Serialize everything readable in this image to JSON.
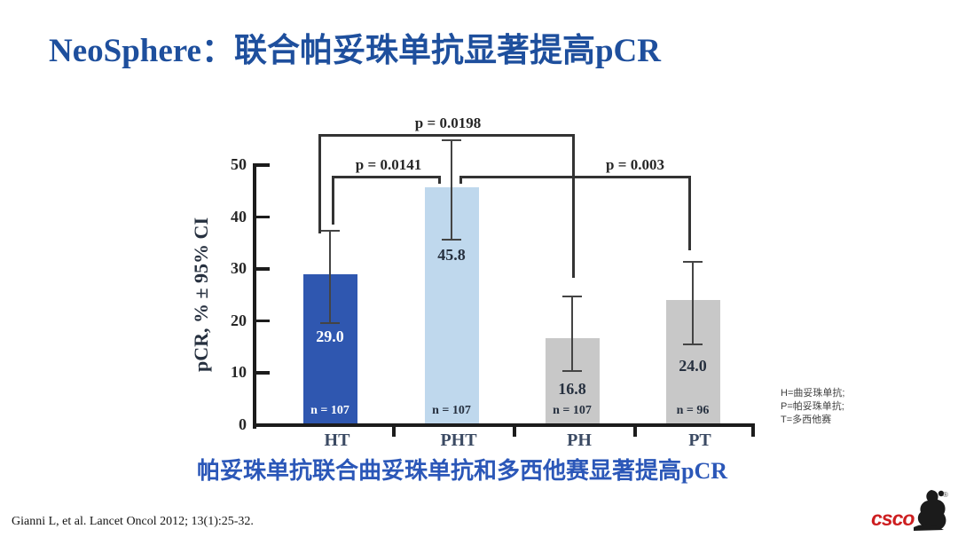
{
  "title": {
    "en": "NeoSphere",
    "zh": "：联合帕妥珠单抗显著提高pCR"
  },
  "caption": "帕妥珠单抗联合曲妥珠单抗和多西他赛显著提高pCR",
  "citation": "Gianni L, et al. Lancet Oncol 2012; 13(1):25-32.",
  "legend": {
    "lines": [
      "H=曲妥珠单抗;",
      "P=帕妥珠单抗;",
      "T=多西他赛"
    ]
  },
  "logo": {
    "text": "csco",
    "registered": "®"
  },
  "colors": {
    "title_blue": "#1e4f9d",
    "caption_blue": "#2b57b8",
    "axis": "#1c1c1c",
    "error_bar": "#444444",
    "bracket": "#333333",
    "category_label": "#3b4a63",
    "tick_label": "#262626",
    "logo_red": "#cd1e20"
  },
  "chart_data": {
    "type": "bar",
    "title": "",
    "xlabel": "",
    "ylabel": "pCR, % ± 95% CI",
    "ylim": [
      0,
      50
    ],
    "yticks": [
      0,
      10,
      20,
      30,
      40,
      50
    ],
    "grid": false,
    "categories": [
      "HT",
      "PHT",
      "PH",
      "PT"
    ],
    "values": [
      29.0,
      45.8,
      16.8,
      24.0
    ],
    "value_labels": [
      "29.0",
      "45.8",
      "16.8",
      "24.0"
    ],
    "ci_low": [
      19.5,
      35.5,
      10.3,
      15.4
    ],
    "ci_high": [
      37.5,
      54.9,
      24.9,
      31.6
    ],
    "n_labels": [
      "n = 107",
      "n = 107",
      "n = 107",
      "n = 96"
    ],
    "bar_colors": [
      "#2f57b0",
      "#bfd8ed",
      "#c8c8c8",
      "#c8c8c8"
    ],
    "value_label_colors": [
      "#ffffff",
      "#26303f",
      "#26303f",
      "#26303f"
    ],
    "n_label_colors": [
      "#ffffff",
      "#26303f",
      "#26303f",
      "#26303f"
    ],
    "brackets": [
      {
        "label": "p = 0.0141",
        "from": "HT",
        "to": "PHT"
      },
      {
        "label": "p = 0.0198",
        "from": "HT",
        "to": "PH"
      },
      {
        "label": "p = 0.003",
        "from": "PHT",
        "to": "PT"
      }
    ],
    "legend_position": "right"
  }
}
